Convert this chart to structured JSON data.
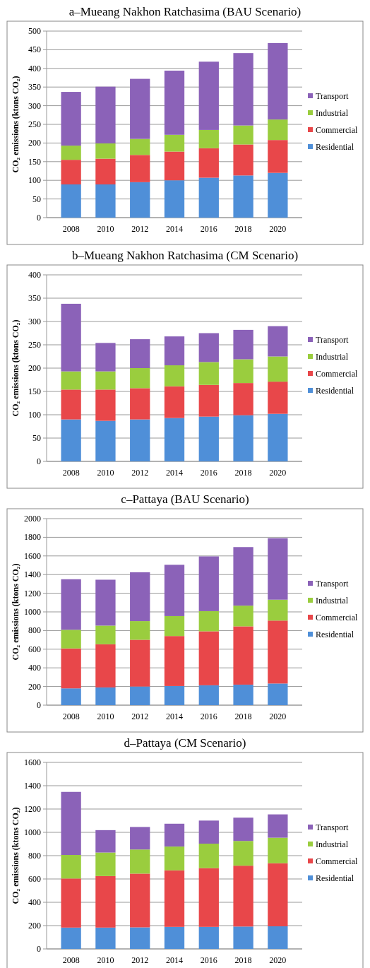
{
  "chart_data": [
    {
      "type": "bar",
      "title": "a–Mueang Nakhon Ratchasima (BAU Scenario)",
      "ylabel": "CO₂ emissions (ktons CO₂)",
      "categories": [
        "2008",
        "2010",
        "2012",
        "2014",
        "2016",
        "2018",
        "2020"
      ],
      "stacked": true,
      "ylim": [
        0,
        500
      ],
      "yticks": [
        0,
        50,
        100,
        150,
        200,
        250,
        300,
        350,
        400,
        450,
        500
      ],
      "grid": "y",
      "legend": "right",
      "series": [
        {
          "name": "Residential",
          "color": "#4f8fd8",
          "values": [
            89,
            89,
            95,
            100,
            107,
            113,
            120
          ]
        },
        {
          "name": "Commercial",
          "color": "#e8474a",
          "values": [
            66,
            69,
            73,
            77,
            79,
            83,
            88
          ]
        },
        {
          "name": "Industrial",
          "color": "#9acd3e",
          "values": [
            38,
            41,
            43,
            45,
            49,
            51,
            55
          ]
        },
        {
          "name": "Transport",
          "color": "#8b62b8",
          "values": [
            144,
            152,
            161,
            172,
            183,
            194,
            205
          ]
        }
      ]
    },
    {
      "type": "bar",
      "title": "b–Mueang Nakhon Ratchasima (CM Scenario)",
      "ylabel": "CO₂ emissions (ktons CO₂)",
      "categories": [
        "2008",
        "2010",
        "2012",
        "2014",
        "2016",
        "2018",
        "2020"
      ],
      "stacked": true,
      "ylim": [
        0,
        400
      ],
      "yticks": [
        0,
        50,
        100,
        150,
        200,
        250,
        300,
        350,
        400
      ],
      "grid": "y",
      "legend": "right",
      "series": [
        {
          "name": "Residential",
          "color": "#4f8fd8",
          "values": [
            90,
            87,
            90,
            93,
            96,
            99,
            102
          ]
        },
        {
          "name": "Commercial",
          "color": "#e8474a",
          "values": [
            64,
            67,
            67,
            68,
            68,
            69,
            69
          ]
        },
        {
          "name": "Industrial",
          "color": "#9acd3e",
          "values": [
            39,
            39,
            43,
            45,
            49,
            51,
            54
          ]
        },
        {
          "name": "Transport",
          "color": "#8b62b8",
          "values": [
            145,
            61,
            62,
            62,
            62,
            63,
            65
          ]
        }
      ]
    },
    {
      "type": "bar",
      "title": "c–Pattaya (BAU Scenario)",
      "ylabel": "CO₂ emissions (ktons CO₂)",
      "categories": [
        "2008",
        "2010",
        "2012",
        "2014",
        "2016",
        "2018",
        "2020"
      ],
      "stacked": true,
      "ylim": [
        0,
        2000
      ],
      "yticks": [
        0,
        200,
        400,
        600,
        800,
        1000,
        1200,
        1400,
        1600,
        1800,
        2000
      ],
      "grid": "y",
      "legend": "right",
      "series": [
        {
          "name": "Residential",
          "color": "#4f8fd8",
          "values": [
            180,
            190,
            200,
            205,
            213,
            220,
            232
          ]
        },
        {
          "name": "Commercial",
          "color": "#e8474a",
          "values": [
            428,
            463,
            501,
            536,
            579,
            625,
            675
          ]
        },
        {
          "name": "Industrial",
          "color": "#9acd3e",
          "values": [
            200,
            200,
            200,
            214,
            216,
            222,
            224
          ]
        },
        {
          "name": "Transport",
          "color": "#8b62b8",
          "values": [
            542,
            492,
            524,
            550,
            587,
            628,
            659
          ]
        }
      ]
    },
    {
      "type": "bar",
      "title": "d–Pattaya (CM Scenario)",
      "ylabel": "CO₂ emissions (ktons CO₂)",
      "categories": [
        "2008",
        "2010",
        "2012",
        "2014",
        "2016",
        "2018",
        "2020"
      ],
      "stacked": true,
      "ylim": [
        0,
        1600
      ],
      "yticks": [
        0,
        200,
        400,
        600,
        800,
        1000,
        1200,
        1400,
        1600
      ],
      "grid": "y",
      "legend": "right",
      "series": [
        {
          "name": "Residential",
          "color": "#4f8fd8",
          "values": [
            183,
            183,
            185,
            189,
            189,
            192,
            194
          ]
        },
        {
          "name": "Commercial",
          "color": "#e8474a",
          "values": [
            421,
            442,
            461,
            485,
            504,
            522,
            541
          ]
        },
        {
          "name": "Industrial",
          "color": "#9acd3e",
          "values": [
            202,
            202,
            207,
            204,
            210,
            212,
            219
          ]
        },
        {
          "name": "Transport",
          "color": "#8b62b8",
          "values": [
            541,
            192,
            193,
            196,
            198,
            200,
            200
          ]
        }
      ]
    }
  ]
}
